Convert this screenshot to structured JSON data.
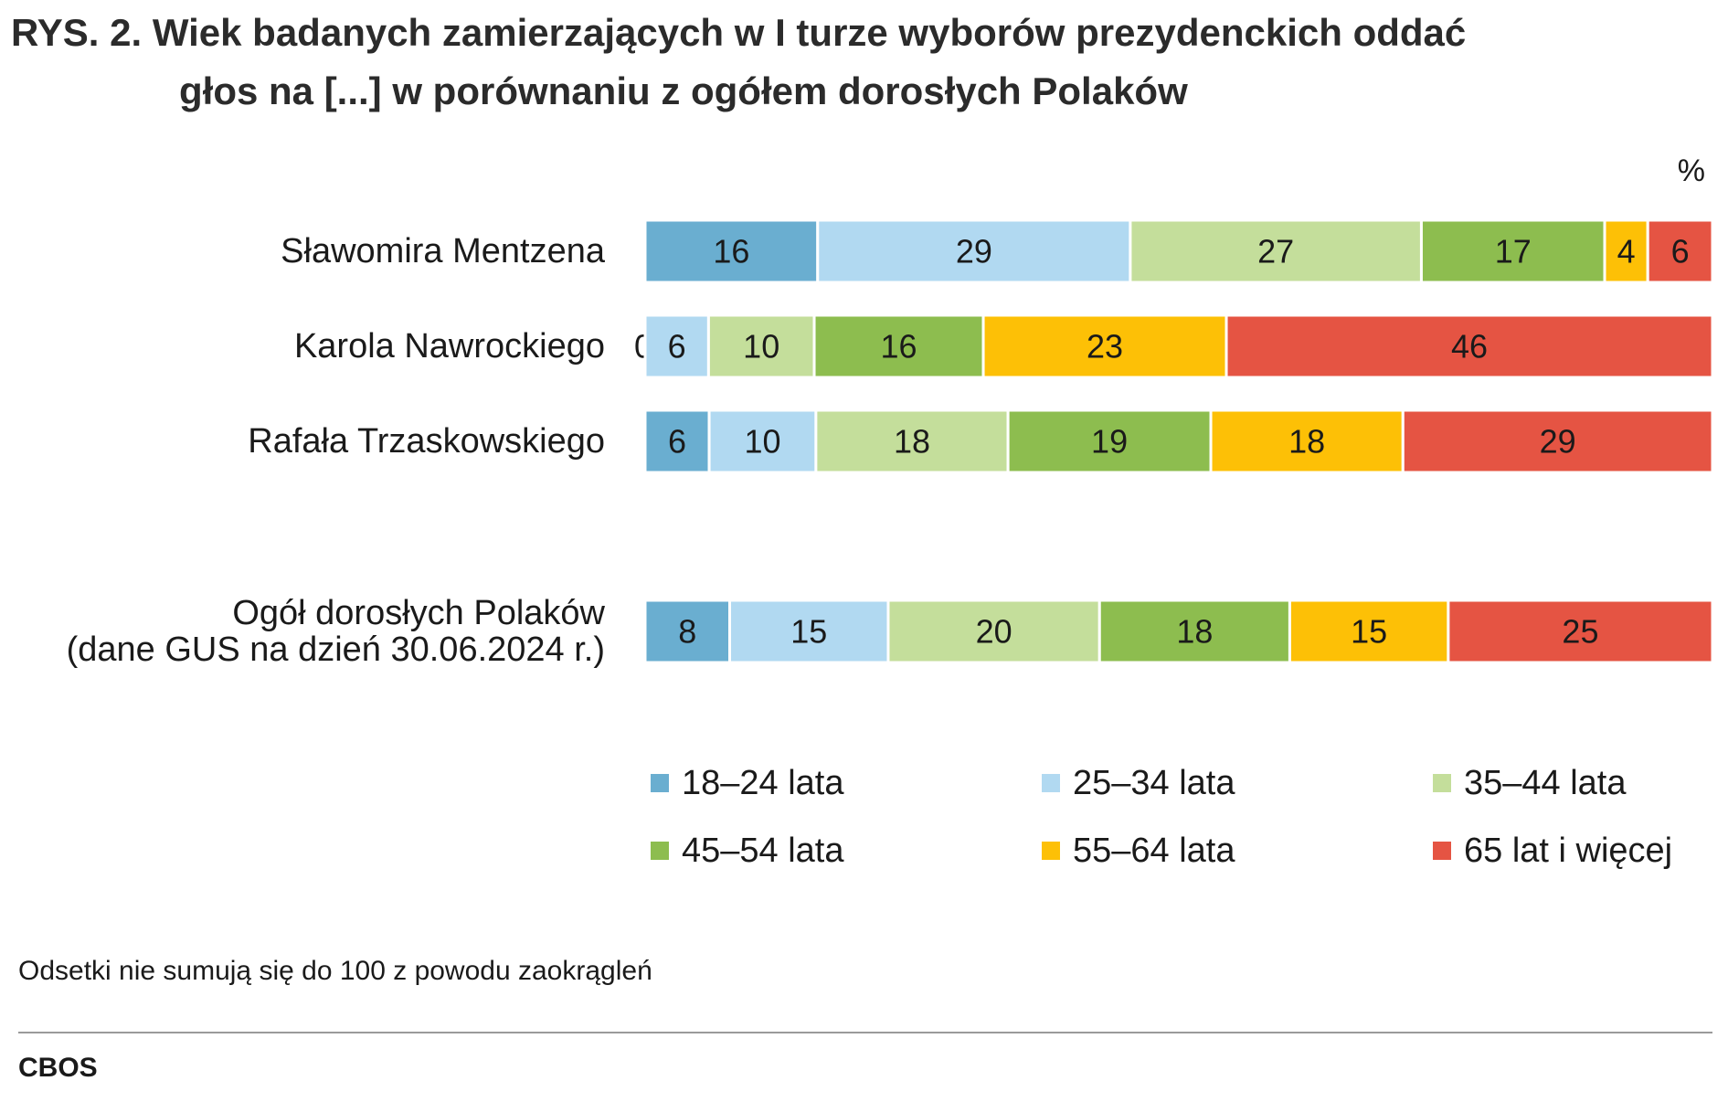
{
  "title_line1": "RYS. 2. Wiek badanych zamierzających w I turze wyborów prezydenckich oddać",
  "title_line2": "głos na [...] w porównaniu z ogółem dorosłych Polaków",
  "unit": "%",
  "note": "Odsetki nie sumują się do 100 z powodu zaokrągleń",
  "source": "CBOS",
  "chart_data": {
    "type": "bar",
    "orientation": "horizontal",
    "stacked": true,
    "title": "RYS. 2. Wiek badanych zamierzających w I turze wyborów prezydenckich oddać głos na [...] w porównaniu z ogółem dorosłych Polaków",
    "unit": "%",
    "categories": [
      [
        "Sławomira Mentzena"
      ],
      [
        "Karola Nawrockiego"
      ],
      [
        "Rafała Trzaskowskiego"
      ],
      [
        "Ogół dorosłych Polaków",
        "(dane GUS na dzień 30.06.2024 r.)"
      ]
    ],
    "series": [
      {
        "name": "18–24 lata",
        "color": "#6aaed0",
        "values": [
          16,
          0,
          6,
          8
        ]
      },
      {
        "name": "25–34 lata",
        "color": "#b1d9f1",
        "values": [
          29,
          6,
          10,
          15
        ]
      },
      {
        "name": "35–44 lata",
        "color": "#c4de9b",
        "values": [
          27,
          10,
          18,
          20
        ]
      },
      {
        "name": "45–54 lata",
        "color": "#8dbd4f",
        "values": [
          17,
          16,
          19,
          18
        ]
      },
      {
        "name": "55–64 lata",
        "color": "#fdc006",
        "values": [
          4,
          23,
          18,
          15
        ]
      },
      {
        "name": "65 lat i więcej",
        "color": "#e55443",
        "values": [
          6,
          46,
          29,
          25
        ]
      }
    ],
    "legend_position": "bottom",
    "grid": false
  }
}
